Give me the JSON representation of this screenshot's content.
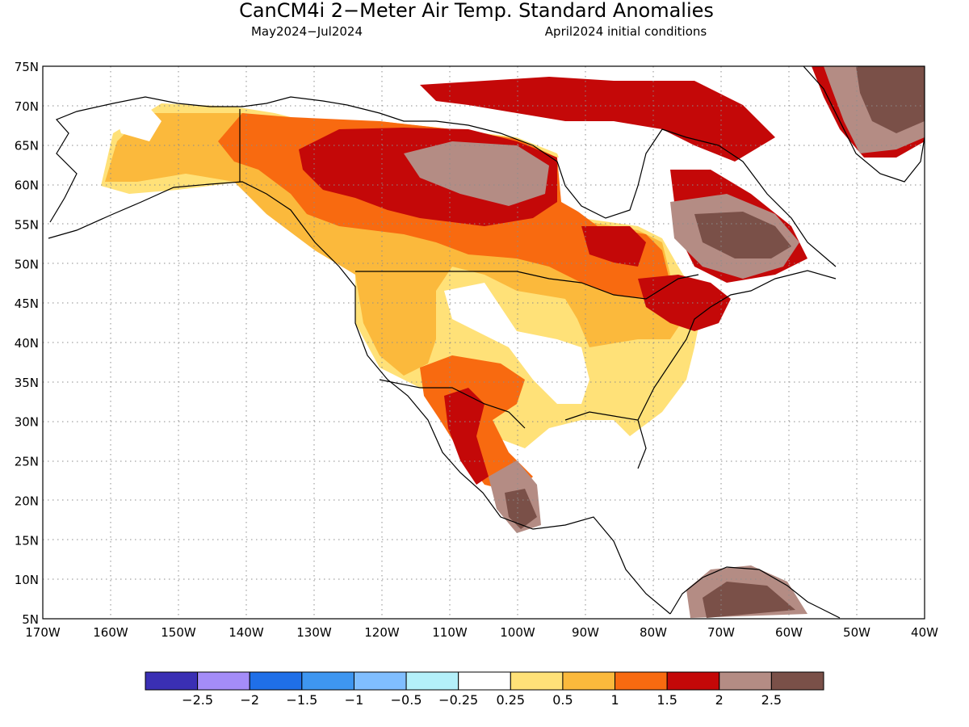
{
  "title": "CanCM4i 2−Meter Air Temp. Standard Anomalies",
  "subtitle_left": "May2024−Jul2024",
  "subtitle_right": "April2024 initial conditions",
  "map": {
    "lon_range": [
      -170,
      -40
    ],
    "lat_range": [
      5,
      75
    ],
    "lat_ticks": [
      "75N",
      "70N",
      "65N",
      "60N",
      "55N",
      "50N",
      "45N",
      "40N",
      "35N",
      "30N",
      "25N",
      "20N",
      "15N",
      "10N",
      "5N"
    ],
    "lon_ticks": [
      "170W",
      "160W",
      "150W",
      "140W",
      "130W",
      "120W",
      "110W",
      "100W",
      "90W",
      "80W",
      "70W",
      "60W",
      "50W",
      "40W"
    ],
    "grid": "dotted"
  },
  "legend": {
    "colors": [
      "#3a2fb4",
      "#a48cf8",
      "#1f6fe8",
      "#3e96f0",
      "#80beff",
      "#b4f0fa",
      "#ffffff",
      "#ffe178",
      "#fbb93c",
      "#f86a10",
      "#c40808",
      "#b48c84",
      "#7a5048"
    ],
    "labels": [
      "−2.5",
      "−2",
      "−1.5",
      "−1",
      "−0.5",
      "−0.25",
      "0.25",
      "0.5",
      "1",
      "1.5",
      "2",
      "2.5"
    ]
  }
}
